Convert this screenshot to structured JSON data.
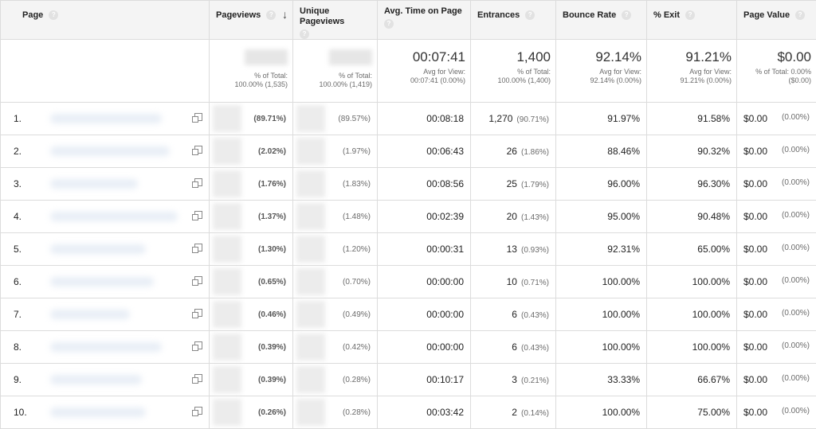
{
  "headers": {
    "page": "Page",
    "pageviews": "Pageviews",
    "unique_pageviews": "Unique Pageviews",
    "avg_time": "Avg. Time on Page",
    "entrances": "Entrances",
    "bounce_rate": "Bounce Rate",
    "exit": "% Exit",
    "page_value": "Page Value",
    "help_glyph": "?",
    "sort_glyph": "↓"
  },
  "summary": {
    "pageviews_note": "% of Total:\n100.00% (1,535)",
    "unique_note": "% of Total:\n100.00% (1,419)",
    "avg_time": "00:07:41",
    "avg_time_note": "Avg for View:\n00:07:41 (0.00%)",
    "entrances": "1,400",
    "entrances_note": "% of Total:\n100.00% (1,400)",
    "bounce_rate": "92.14%",
    "bounce_note": "Avg for View:\n92.14% (0.00%)",
    "exit": "91.21%",
    "exit_note": "Avg for View:\n91.21% (0.00%)",
    "page_value": "$0.00",
    "page_value_note": "% of Total: 0.00%\n($0.00)"
  },
  "rows": [
    {
      "idx": "1.",
      "pv_pct": "(89.71%)",
      "upv_pct": "(89.57%)",
      "time": "00:08:18",
      "ent": "1,270",
      "ent_pct": "(90.71%)",
      "bounce": "91.97%",
      "exit": "91.58%",
      "value": "$0.00",
      "value_pct": "(0.00%)"
    },
    {
      "idx": "2.",
      "pv_pct": "(2.02%)",
      "upv_pct": "(1.97%)",
      "time": "00:06:43",
      "ent": "26",
      "ent_pct": "(1.86%)",
      "bounce": "88.46%",
      "exit": "90.32%",
      "value": "$0.00",
      "value_pct": "(0.00%)"
    },
    {
      "idx": "3.",
      "pv_pct": "(1.76%)",
      "upv_pct": "(1.83%)",
      "time": "00:08:56",
      "ent": "25",
      "ent_pct": "(1.79%)",
      "bounce": "96.00%",
      "exit": "96.30%",
      "value": "$0.00",
      "value_pct": "(0.00%)"
    },
    {
      "idx": "4.",
      "pv_pct": "(1.37%)",
      "upv_pct": "(1.48%)",
      "time": "00:02:39",
      "ent": "20",
      "ent_pct": "(1.43%)",
      "bounce": "95.00%",
      "exit": "90.48%",
      "value": "$0.00",
      "value_pct": "(0.00%)"
    },
    {
      "idx": "5.",
      "pv_pct": "(1.30%)",
      "upv_pct": "(1.20%)",
      "time": "00:00:31",
      "ent": "13",
      "ent_pct": "(0.93%)",
      "bounce": "92.31%",
      "exit": "65.00%",
      "value": "$0.00",
      "value_pct": "(0.00%)"
    },
    {
      "idx": "6.",
      "pv_pct": "(0.65%)",
      "upv_pct": "(0.70%)",
      "time": "00:00:00",
      "ent": "10",
      "ent_pct": "(0.71%)",
      "bounce": "100.00%",
      "exit": "100.00%",
      "value": "$0.00",
      "value_pct": "(0.00%)"
    },
    {
      "idx": "7.",
      "pv_pct": "(0.46%)",
      "upv_pct": "(0.49%)",
      "time": "00:00:00",
      "ent": "6",
      "ent_pct": "(0.43%)",
      "bounce": "100.00%",
      "exit": "100.00%",
      "value": "$0.00",
      "value_pct": "(0.00%)"
    },
    {
      "idx": "8.",
      "pv_pct": "(0.39%)",
      "upv_pct": "(0.42%)",
      "time": "00:00:00",
      "ent": "6",
      "ent_pct": "(0.43%)",
      "bounce": "100.00%",
      "exit": "100.00%",
      "value": "$0.00",
      "value_pct": "(0.00%)"
    },
    {
      "idx": "9.",
      "pv_pct": "(0.39%)",
      "upv_pct": "(0.28%)",
      "time": "00:10:17",
      "ent": "3",
      "ent_pct": "(0.21%)",
      "bounce": "33.33%",
      "exit": "66.67%",
      "value": "$0.00",
      "value_pct": "(0.00%)"
    },
    {
      "idx": "10.",
      "pv_pct": "(0.26%)",
      "upv_pct": "(0.28%)",
      "time": "00:03:42",
      "ent": "2",
      "ent_pct": "(0.14%)",
      "bounce": "100.00%",
      "exit": "75.00%",
      "value": "$0.00",
      "value_pct": "(0.00%)"
    }
  ]
}
